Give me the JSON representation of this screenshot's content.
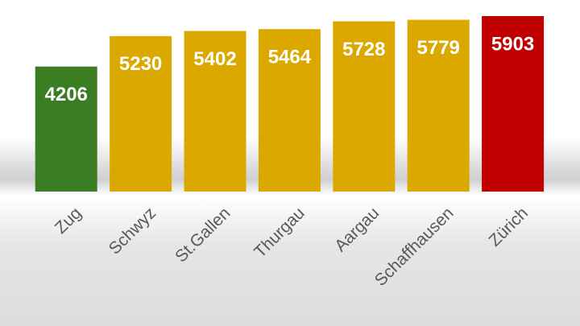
{
  "chart_data": {
    "type": "bar",
    "categories": [
      "Zug",
      "Schwyz",
      "St.Gallen",
      "Thurgau",
      "Aargau",
      "Schaffhausen",
      "Zürich"
    ],
    "values": [
      4206,
      5230,
      5402,
      5464,
      5728,
      5779,
      5903
    ],
    "colors": [
      "#3b7d23",
      "#dba800",
      "#dba800",
      "#dba800",
      "#dba800",
      "#dba800",
      "#c00000"
    ]
  }
}
